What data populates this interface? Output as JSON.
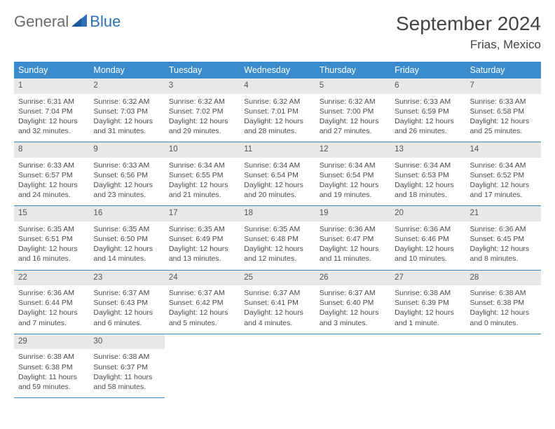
{
  "brand": {
    "part1": "General",
    "part2": "Blue"
  },
  "title": "September 2024",
  "location": "Frias, Mexico",
  "colors": {
    "header_bg": "#3a8bce",
    "header_text": "#ffffff",
    "daynum_bg": "#e8e8e8",
    "row_border": "#3a8bce",
    "body_text": "#4a4a4a",
    "logo_gray": "#6b6b6b",
    "logo_blue": "#2f6fb5"
  },
  "layout": {
    "cell_fontsize": 10.5,
    "dow_fontsize": 12.5,
    "title_fontsize": 28,
    "location_fontsize": 17
  },
  "days_of_week": [
    "Sunday",
    "Monday",
    "Tuesday",
    "Wednesday",
    "Thursday",
    "Friday",
    "Saturday"
  ],
  "weeks": [
    [
      {
        "n": "1",
        "sr": "6:31 AM",
        "ss": "7:04 PM",
        "dl": "12 hours and 32 minutes."
      },
      {
        "n": "2",
        "sr": "6:32 AM",
        "ss": "7:03 PM",
        "dl": "12 hours and 31 minutes."
      },
      {
        "n": "3",
        "sr": "6:32 AM",
        "ss": "7:02 PM",
        "dl": "12 hours and 29 minutes."
      },
      {
        "n": "4",
        "sr": "6:32 AM",
        "ss": "7:01 PM",
        "dl": "12 hours and 28 minutes."
      },
      {
        "n": "5",
        "sr": "6:32 AM",
        "ss": "7:00 PM",
        "dl": "12 hours and 27 minutes."
      },
      {
        "n": "6",
        "sr": "6:33 AM",
        "ss": "6:59 PM",
        "dl": "12 hours and 26 minutes."
      },
      {
        "n": "7",
        "sr": "6:33 AM",
        "ss": "6:58 PM",
        "dl": "12 hours and 25 minutes."
      }
    ],
    [
      {
        "n": "8",
        "sr": "6:33 AM",
        "ss": "6:57 PM",
        "dl": "12 hours and 24 minutes."
      },
      {
        "n": "9",
        "sr": "6:33 AM",
        "ss": "6:56 PM",
        "dl": "12 hours and 23 minutes."
      },
      {
        "n": "10",
        "sr": "6:34 AM",
        "ss": "6:55 PM",
        "dl": "12 hours and 21 minutes."
      },
      {
        "n": "11",
        "sr": "6:34 AM",
        "ss": "6:54 PM",
        "dl": "12 hours and 20 minutes."
      },
      {
        "n": "12",
        "sr": "6:34 AM",
        "ss": "6:54 PM",
        "dl": "12 hours and 19 minutes."
      },
      {
        "n": "13",
        "sr": "6:34 AM",
        "ss": "6:53 PM",
        "dl": "12 hours and 18 minutes."
      },
      {
        "n": "14",
        "sr": "6:34 AM",
        "ss": "6:52 PM",
        "dl": "12 hours and 17 minutes."
      }
    ],
    [
      {
        "n": "15",
        "sr": "6:35 AM",
        "ss": "6:51 PM",
        "dl": "12 hours and 16 minutes."
      },
      {
        "n": "16",
        "sr": "6:35 AM",
        "ss": "6:50 PM",
        "dl": "12 hours and 14 minutes."
      },
      {
        "n": "17",
        "sr": "6:35 AM",
        "ss": "6:49 PM",
        "dl": "12 hours and 13 minutes."
      },
      {
        "n": "18",
        "sr": "6:35 AM",
        "ss": "6:48 PM",
        "dl": "12 hours and 12 minutes."
      },
      {
        "n": "19",
        "sr": "6:36 AM",
        "ss": "6:47 PM",
        "dl": "12 hours and 11 minutes."
      },
      {
        "n": "20",
        "sr": "6:36 AM",
        "ss": "6:46 PM",
        "dl": "12 hours and 10 minutes."
      },
      {
        "n": "21",
        "sr": "6:36 AM",
        "ss": "6:45 PM",
        "dl": "12 hours and 8 minutes."
      }
    ],
    [
      {
        "n": "22",
        "sr": "6:36 AM",
        "ss": "6:44 PM",
        "dl": "12 hours and 7 minutes."
      },
      {
        "n": "23",
        "sr": "6:37 AM",
        "ss": "6:43 PM",
        "dl": "12 hours and 6 minutes."
      },
      {
        "n": "24",
        "sr": "6:37 AM",
        "ss": "6:42 PM",
        "dl": "12 hours and 5 minutes."
      },
      {
        "n": "25",
        "sr": "6:37 AM",
        "ss": "6:41 PM",
        "dl": "12 hours and 4 minutes."
      },
      {
        "n": "26",
        "sr": "6:37 AM",
        "ss": "6:40 PM",
        "dl": "12 hours and 3 minutes."
      },
      {
        "n": "27",
        "sr": "6:38 AM",
        "ss": "6:39 PM",
        "dl": "12 hours and 1 minute."
      },
      {
        "n": "28",
        "sr": "6:38 AM",
        "ss": "6:38 PM",
        "dl": "12 hours and 0 minutes."
      }
    ],
    [
      {
        "n": "29",
        "sr": "6:38 AM",
        "ss": "6:38 PM",
        "dl": "11 hours and 59 minutes."
      },
      {
        "n": "30",
        "sr": "6:38 AM",
        "ss": "6:37 PM",
        "dl": "11 hours and 58 minutes."
      },
      null,
      null,
      null,
      null,
      null
    ]
  ],
  "labels": {
    "sunrise": "Sunrise: ",
    "sunset": "Sunset: ",
    "daylight": "Daylight: "
  }
}
